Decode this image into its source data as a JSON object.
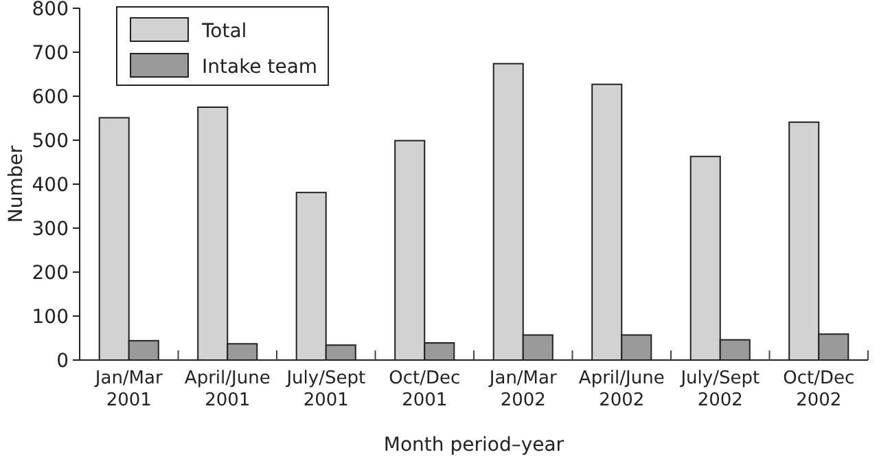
{
  "chart_data": {
    "type": "bar",
    "xlabel": "Month period–year",
    "ylabel": "Number",
    "categories": [
      "Jan/Mar\n2001",
      "April/June\n2001",
      "July/Sept\n2001",
      "Oct/Dec\n2001",
      "Jan/Mar\n2002",
      "April/June\n2002",
      "July/Sept\n2002",
      "Oct/Dec\n2002"
    ],
    "series": [
      {
        "name": "Total",
        "color": "#d2d2d2",
        "values": [
          551,
          575,
          381,
          499,
          674,
          627,
          463,
          541
        ]
      },
      {
        "name": "Intake team",
        "color": "#9a9a9a",
        "values": [
          44,
          37,
          34,
          39,
          57,
          57,
          46,
          59
        ]
      }
    ],
    "ylim": [
      0,
      800
    ],
    "yticks": [
      0,
      100,
      200,
      300,
      400,
      500,
      600,
      700,
      800
    ],
    "grid": false,
    "legend": "top left"
  }
}
